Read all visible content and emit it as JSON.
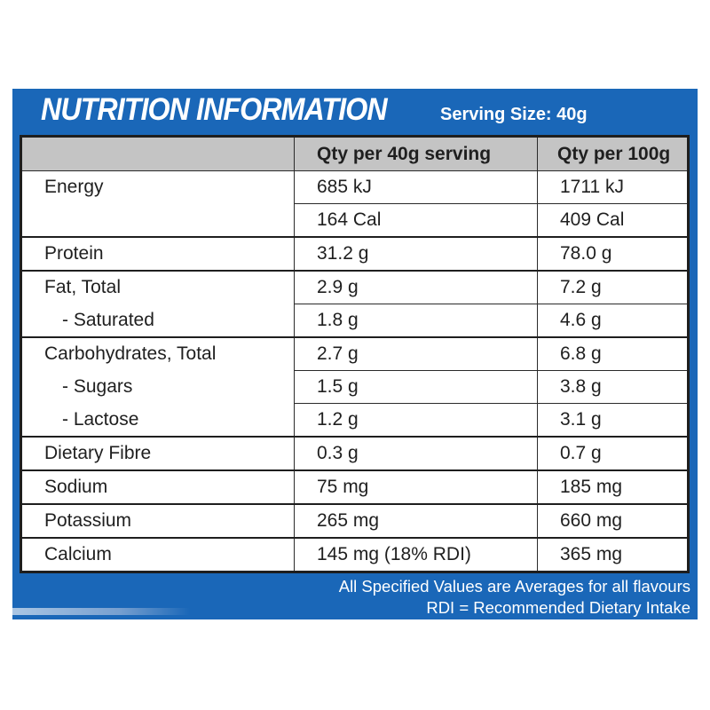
{
  "title": "NUTRITION INFORMATION",
  "serving_size": "Serving Size: 40g",
  "headers": [
    "",
    "Qty per 40g serving",
    "Qty per 100g"
  ],
  "rows": [
    {
      "label": "Energy",
      "per_serving": "685 kJ",
      "per_100g": "1711 kJ"
    },
    {
      "label": "",
      "per_serving": "164 Cal",
      "per_100g": "409 Cal"
    },
    {
      "label": "Protein",
      "per_serving": "31.2 g",
      "per_100g": "78.0 g"
    },
    {
      "label": "Fat,  Total",
      "per_serving": "2.9 g",
      "per_100g": "7.2 g"
    },
    {
      "label": "  - Saturated",
      "per_serving": "1.8 g",
      "per_100g": "4.6 g"
    },
    {
      "label": "Carbohydrates,  Total",
      "per_serving": "2.7 g",
      "per_100g": "6.8 g"
    },
    {
      "label": "  - Sugars",
      "per_serving": "1.5 g",
      "per_100g": "3.8 g"
    },
    {
      "label": "  - Lactose",
      "per_serving": "1.2 g",
      "per_100g": "3.1 g"
    },
    {
      "label": "Dietary Fibre",
      "per_serving": "0.3 g",
      "per_100g": "0.7 g"
    },
    {
      "label": "Sodium",
      "per_serving": "75 mg",
      "per_100g": "185 mg"
    },
    {
      "label": "Potassium",
      "per_serving": "265 mg",
      "per_100g": "660 mg"
    },
    {
      "label": "Calcium",
      "per_serving": "145 mg (18% RDI)",
      "per_100g": "365 mg"
    }
  ],
  "footnotes": [
    "All Specified Values are Averages for all flavours",
    "RDI = Recommended Dietary Intake"
  ],
  "colors": {
    "panel": "#1a67b8",
    "header_bg": "#c4c4c4"
  }
}
